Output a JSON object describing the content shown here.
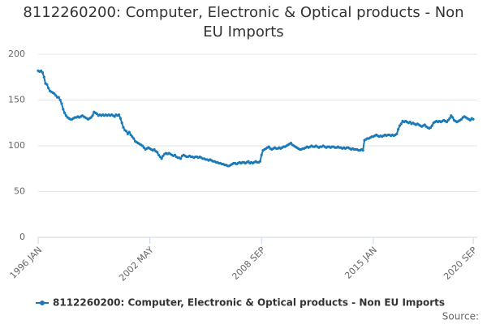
{
  "chart_data": {
    "type": "line",
    "title": "8112260200: Computer, Electronic & Optical products - Non EU Imports",
    "source_label": "Source:",
    "categories": [
      "1996 JAN",
      null,
      null,
      null,
      null,
      null,
      null,
      null,
      null,
      null,
      null,
      null,
      null,
      null,
      null,
      null,
      null,
      null,
      null,
      null,
      null,
      null,
      null,
      null,
      null,
      null,
      null,
      null,
      null,
      null,
      null,
      null,
      null,
      null,
      null,
      null,
      null,
      null,
      null,
      null,
      null,
      null,
      null,
      null,
      null,
      null,
      null,
      null,
      null,
      null,
      null,
      null,
      null,
      null,
      null,
      null,
      null,
      null,
      null,
      null,
      null,
      null,
      null,
      null,
      null,
      null,
      null,
      null,
      null,
      null,
      null,
      null,
      null,
      null,
      null,
      null,
      "2002 MAY",
      null,
      null,
      null,
      null,
      null,
      null,
      null,
      null,
      null,
      null,
      null,
      null,
      null,
      null,
      null,
      null,
      null,
      null,
      null,
      null,
      null,
      null,
      null,
      null,
      null,
      null,
      null,
      null,
      null,
      null,
      null,
      null,
      null,
      null,
      null,
      null,
      null,
      null,
      null,
      null,
      null,
      null,
      null,
      null,
      null,
      null,
      null,
      null,
      null,
      null,
      null,
      null,
      null,
      null,
      null,
      null,
      null,
      null,
      null,
      null,
      null,
      null,
      null,
      null,
      null,
      null,
      null,
      null,
      null,
      null,
      null,
      null,
      null,
      null,
      null,
      "2008 SEP",
      null,
      null,
      null,
      null,
      null,
      null,
      null,
      null,
      null,
      null,
      null,
      null,
      null,
      null,
      null,
      null,
      null,
      null,
      null,
      null,
      null,
      null,
      null,
      null,
      null,
      null,
      null,
      null,
      null,
      null,
      null,
      null,
      null,
      null,
      null,
      null,
      null,
      null,
      null,
      null,
      null,
      null,
      null,
      null,
      null,
      null,
      null,
      null,
      null,
      null,
      null,
      null,
      null,
      null,
      null,
      null,
      null,
      null,
      null,
      null,
      null,
      null,
      null,
      null,
      null,
      null,
      null,
      null,
      null,
      null,
      null,
      null,
      null,
      null,
      null,
      "2015 JAN",
      null,
      null,
      null,
      null,
      null,
      null,
      null,
      null,
      null,
      null,
      null,
      null,
      null,
      null,
      null,
      null,
      null,
      null,
      null,
      null,
      null,
      null,
      null,
      null,
      null,
      null,
      null,
      null,
      null,
      null,
      null,
      null,
      null,
      null,
      null,
      null,
      null,
      null,
      null,
      null,
      null,
      null,
      null,
      null,
      null,
      null,
      null,
      null,
      null,
      null,
      null,
      null,
      null,
      null,
      null,
      null,
      null,
      null,
      null,
      null,
      null,
      null,
      null,
      null,
      null,
      null,
      null,
      "2020 SEP"
    ],
    "series": [
      {
        "name": "8112260200: Computer, Electronic & Optical products - Non EU Imports",
        "color": "#1a7ab8",
        "values": [
          182,
          181,
          182,
          180,
          175,
          168,
          167,
          163,
          160,
          159,
          158,
          157,
          155,
          153,
          153,
          150,
          146,
          140,
          136,
          133,
          131,
          130,
          129,
          129,
          130,
          131,
          131,
          132,
          131,
          132,
          133,
          132,
          131,
          130,
          129,
          130,
          131,
          133,
          137,
          136,
          135,
          133,
          134,
          133,
          134,
          133,
          134,
          133,
          134,
          133,
          134,
          133,
          132,
          134,
          133,
          134,
          130,
          125,
          120,
          117,
          116,
          113,
          115,
          112,
          110,
          108,
          105,
          104,
          103,
          102,
          101,
          100,
          98,
          96,
          97,
          98,
          97,
          96,
          95,
          96,
          94,
          93,
          90,
          88,
          86,
          89,
          91,
          92,
          91,
          92,
          91,
          90,
          89,
          90,
          88,
          87,
          87,
          86,
          89,
          90,
          89,
          88,
          88,
          89,
          88,
          88,
          87,
          88,
          88,
          87,
          88,
          87,
          86,
          86,
          85,
          85,
          84,
          85,
          84,
          83,
          83,
          82,
          82,
          81,
          81,
          80,
          80,
          79,
          79,
          78,
          78,
          79,
          80,
          81,
          81,
          80,
          81,
          82,
          81,
          82,
          82,
          81,
          82,
          83,
          81,
          82,
          81,
          82,
          83,
          82,
          82,
          83,
          90,
          95,
          96,
          97,
          98,
          99,
          97,
          96,
          97,
          98,
          97,
          97,
          98,
          97,
          98,
          99,
          99,
          100,
          101,
          102,
          103,
          101,
          100,
          99,
          98,
          97,
          96,
          96,
          97,
          97,
          98,
          99,
          98,
          99,
          100,
          99,
          99,
          100,
          99,
          98,
          99,
          99,
          100,
          99,
          98,
          99,
          99,
          98,
          99,
          99,
          98,
          98,
          99,
          98,
          98,
          97,
          98,
          97,
          98,
          98,
          97,
          96,
          97,
          96,
          96,
          96,
          95,
          95,
          96,
          95,
          106,
          107,
          108,
          108,
          109,
          110,
          110,
          111,
          112,
          111,
          110,
          111,
          110,
          111,
          112,
          111,
          112,
          112,
          111,
          112,
          111,
          112,
          113,
          118,
          122,
          124,
          127,
          126,
          127,
          126,
          125,
          126,
          124,
          125,
          124,
          123,
          124,
          123,
          122,
          121,
          122,
          123,
          121,
          120,
          119,
          120,
          122,
          125,
          126,
          127,
          126,
          127,
          126,
          127,
          128,
          127,
          126,
          128,
          130,
          133,
          131,
          128,
          127,
          126,
          127,
          128,
          129,
          131,
          132,
          131,
          130,
          129,
          128,
          130,
          129
        ]
      }
    ],
    "ylim": [
      0,
      200
    ],
    "yticks": [
      0,
      50,
      100,
      150,
      200
    ],
    "grid": true
  }
}
